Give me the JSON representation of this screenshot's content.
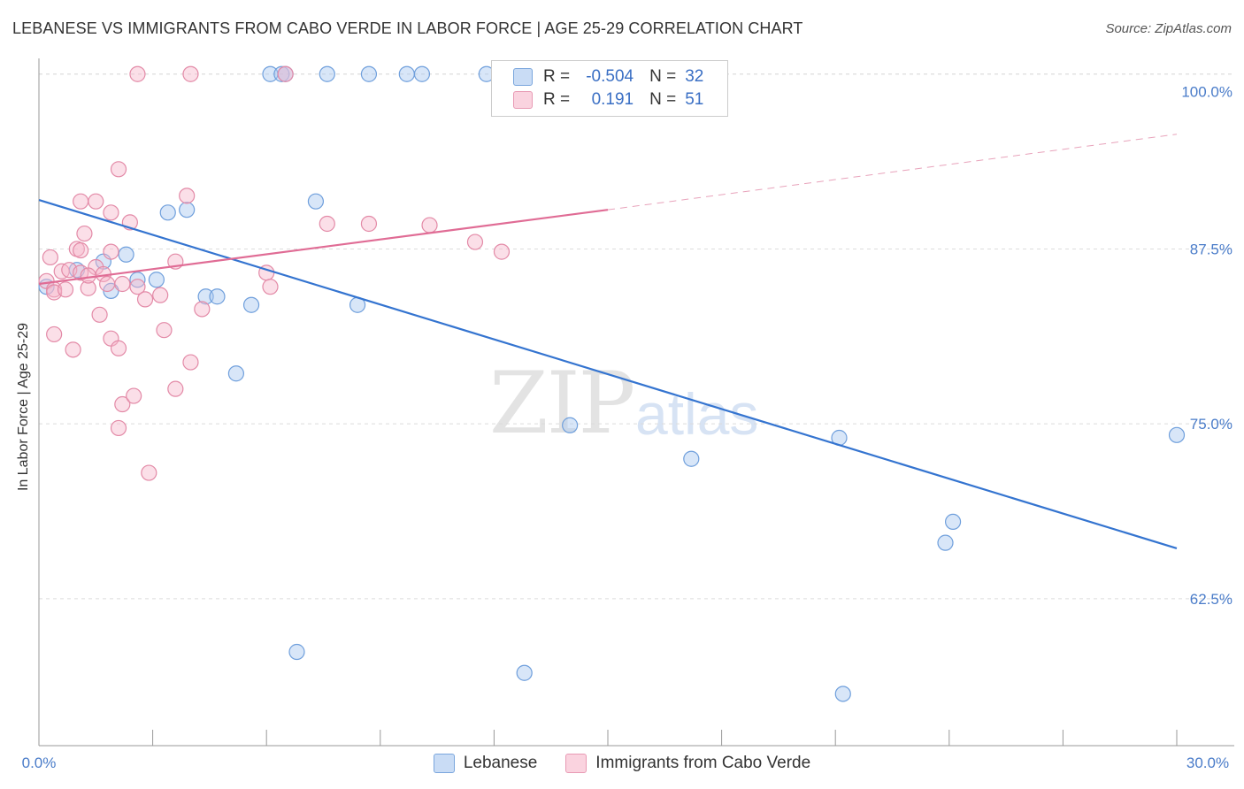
{
  "header": {
    "title": "LEBANESE VS IMMIGRANTS FROM CABO VERDE IN LABOR FORCE | AGE 25-29 CORRELATION CHART",
    "source": "Source: ZipAtlas.com"
  },
  "watermark": {
    "zip": "ZIP",
    "atlas": "atlas"
  },
  "legend": {
    "rows": [
      {
        "r_label": "R =",
        "r_value": "-0.504",
        "n_label": "N =",
        "n_value": "32",
        "color": "#a9c7ef"
      },
      {
        "r_label": "R =",
        "r_value": "0.191",
        "n_label": "N =",
        "n_value": "51",
        "color": "#f6b8cb"
      }
    ]
  },
  "chart_data": {
    "type": "scatter",
    "title": "LEBANESE VS IMMIGRANTS FROM CABO VERDE IN LABOR FORCE | AGE 25-29 CORRELATION CHART",
    "xlabel": "",
    "ylabel": "In Labor Force | Age 25-29",
    "xlim": [
      0,
      30
    ],
    "ylim": [
      52,
      101.5
    ],
    "x_tick_labels": [
      "0.0%",
      "30.0%"
    ],
    "y_ticks": [
      62.5,
      75.0,
      87.5,
      100.0
    ],
    "y_tick_labels": [
      "62.5%",
      "75.0%",
      "87.5%",
      "100.0%"
    ],
    "grid": true,
    "legend_position": "bottom",
    "series": [
      {
        "name": "Lebanese",
        "color": "#a9c7ef",
        "stroke": "#6f9fdc",
        "points": [
          [
            0.2,
            84.8
          ],
          [
            1.0,
            86.0
          ],
          [
            1.7,
            86.6
          ],
          [
            2.3,
            87.1
          ],
          [
            1.9,
            84.5
          ],
          [
            2.6,
            85.3
          ],
          [
            3.1,
            85.3
          ],
          [
            3.4,
            90.1
          ],
          [
            3.9,
            90.3
          ],
          [
            4.4,
            84.1
          ],
          [
            4.7,
            84.1
          ],
          [
            5.2,
            78.6
          ],
          [
            5.6,
            83.5
          ],
          [
            6.1,
            100.0
          ],
          [
            6.4,
            100.0
          ],
          [
            6.5,
            100.0
          ],
          [
            7.6,
            100.0
          ],
          [
            8.7,
            100.0
          ],
          [
            9.7,
            100.0
          ],
          [
            10.1,
            100.0
          ],
          [
            11.8,
            100.0
          ],
          [
            7.3,
            90.9
          ],
          [
            8.4,
            83.5
          ],
          [
            14.0,
            74.9
          ],
          [
            17.2,
            72.5
          ],
          [
            21.1,
            74.0
          ],
          [
            23.9,
            66.5
          ],
          [
            24.1,
            68.0
          ],
          [
            30.0,
            74.2
          ],
          [
            6.8,
            58.7
          ],
          [
            12.8,
            57.2
          ],
          [
            21.2,
            55.7
          ]
        ]
      },
      {
        "name": "Immigrants from Cabo Verde",
        "color": "#f6b8cb",
        "stroke": "#e38aa7",
        "points": [
          [
            0.2,
            85.2
          ],
          [
            0.3,
            86.9
          ],
          [
            0.4,
            84.6
          ],
          [
            0.6,
            85.9
          ],
          [
            0.8,
            86.0
          ],
          [
            1.0,
            87.5
          ],
          [
            1.1,
            87.4
          ],
          [
            1.3,
            84.7
          ],
          [
            1.5,
            86.2
          ],
          [
            1.7,
            85.7
          ],
          [
            1.9,
            87.3
          ],
          [
            2.2,
            85.0
          ],
          [
            2.4,
            89.4
          ],
          [
            1.2,
            88.6
          ],
          [
            1.5,
            90.9
          ],
          [
            1.9,
            90.1
          ],
          [
            2.1,
            93.2
          ],
          [
            0.4,
            81.4
          ],
          [
            0.9,
            80.3
          ],
          [
            1.6,
            82.8
          ],
          [
            1.9,
            81.1
          ],
          [
            2.1,
            80.4
          ],
          [
            2.6,
            84.8
          ],
          [
            2.8,
            83.9
          ],
          [
            3.2,
            84.2
          ],
          [
            3.3,
            81.7
          ],
          [
            3.6,
            86.6
          ],
          [
            4.0,
            79.4
          ],
          [
            3.9,
            91.3
          ],
          [
            4.3,
            83.2
          ],
          [
            2.2,
            76.4
          ],
          [
            2.5,
            77.0
          ],
          [
            2.1,
            74.7
          ],
          [
            3.6,
            77.5
          ],
          [
            2.9,
            71.5
          ],
          [
            6.0,
            85.8
          ],
          [
            6.1,
            84.8
          ],
          [
            7.6,
            89.3
          ],
          [
            8.7,
            89.3
          ],
          [
            10.3,
            89.2
          ],
          [
            11.5,
            88.0
          ],
          [
            12.2,
            87.3
          ],
          [
            0.4,
            84.4
          ],
          [
            0.7,
            84.6
          ],
          [
            1.1,
            85.8
          ],
          [
            1.3,
            85.6
          ],
          [
            1.8,
            85.0
          ],
          [
            2.6,
            100.0
          ],
          [
            4.0,
            100.0
          ],
          [
            6.5,
            100.0
          ],
          [
            1.1,
            90.9
          ]
        ]
      }
    ],
    "trendlines": [
      {
        "series": "Lebanese",
        "x0": 0,
        "y0": 91.0,
        "x1": 30,
        "y1": 66.1,
        "style": "solid",
        "color": "#3474d0"
      },
      {
        "series": "Immigrants from Cabo Verde",
        "x0": 0,
        "y0": 85.0,
        "x1": 15,
        "y1": 90.3,
        "style": "solid",
        "color": "#e06c95"
      },
      {
        "series": "Immigrants from Cabo Verde",
        "x0": 15,
        "y0": 90.3,
        "x1": 30,
        "y1": 95.7,
        "style": "dashed",
        "color": "#e8a3bb"
      }
    ]
  }
}
